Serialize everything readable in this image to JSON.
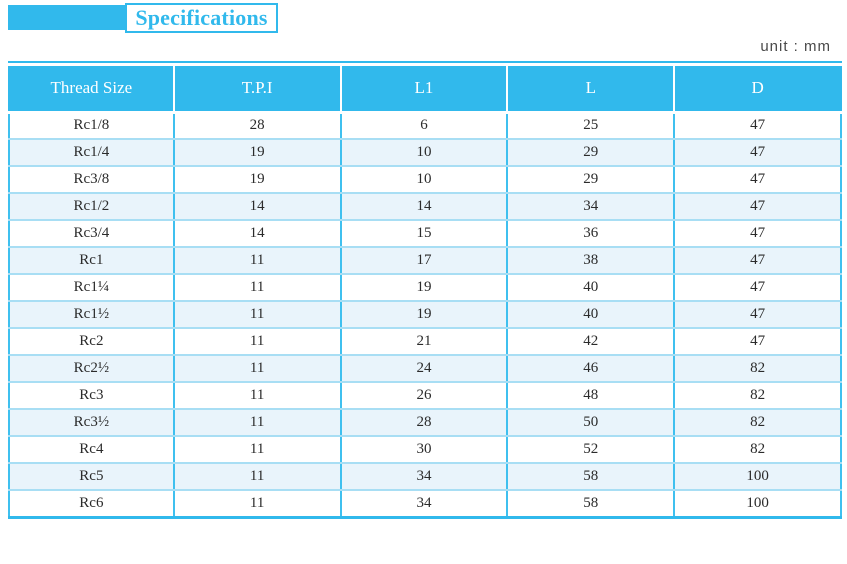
{
  "header": {
    "title": "Specifications",
    "unit_label": "unit : mm"
  },
  "table": {
    "columns": [
      "Thread Size",
      "T.P.I",
      "L1",
      "L",
      "D"
    ],
    "rows": [
      [
        "Rc1/8",
        "28",
        "6",
        "25",
        "47"
      ],
      [
        "Rc1/4",
        "19",
        "10",
        "29",
        "47"
      ],
      [
        "Rc3/8",
        "19",
        "10",
        "29",
        "47"
      ],
      [
        "Rc1/2",
        "14",
        "14",
        "34",
        "47"
      ],
      [
        "Rc3/4",
        "14",
        "15",
        "36",
        "47"
      ],
      [
        "Rc1",
        "11",
        "17",
        "38",
        "47"
      ],
      [
        "Rc1¼",
        "11",
        "19",
        "40",
        "47"
      ],
      [
        "Rc1½",
        "11",
        "19",
        "40",
        "47"
      ],
      [
        "Rc2",
        "11",
        "21",
        "42",
        "47"
      ],
      [
        "Rc2½",
        "11",
        "24",
        "46",
        "82"
      ],
      [
        "Rc3",
        "11",
        "26",
        "48",
        "82"
      ],
      [
        "Rc3½",
        "11",
        "28",
        "50",
        "82"
      ],
      [
        "Rc4",
        "11",
        "30",
        "52",
        "82"
      ],
      [
        "Rc5",
        "11",
        "34",
        "58",
        "100"
      ],
      [
        "Rc6",
        "11",
        "34",
        "58",
        "100"
      ]
    ]
  },
  "colors": {
    "accent": "#31B9EC",
    "row_alt": "#E9F4FB",
    "border_strong": "#3FC0EF",
    "border_light": "#A8DEF4",
    "text_dark": "#2b2b2b",
    "unit_text": "#4a4a4a"
  }
}
